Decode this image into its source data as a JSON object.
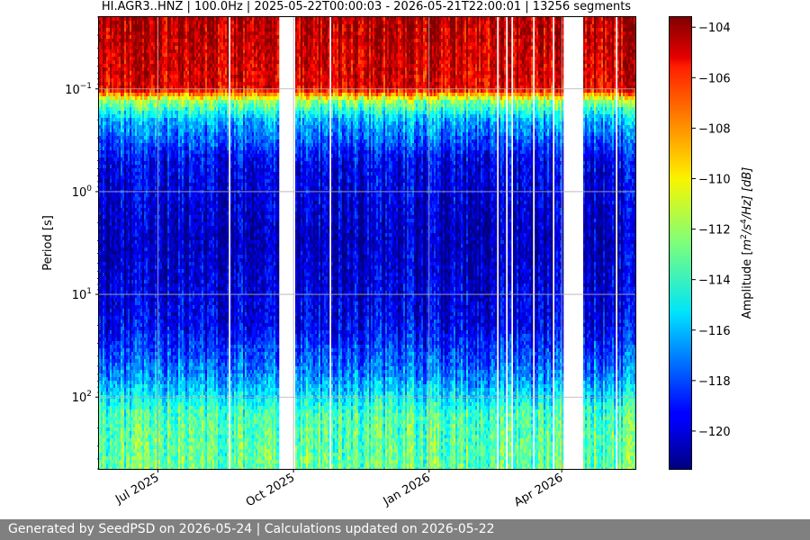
{
  "chart_data": {
    "type": "heatmap",
    "title": "HI.AGR3..HNZ | 100.0Hz | 2025-05-22T00:00:03 - 2026-05-21T22:00:01 | 13256 segments",
    "ylabel": "Period [s]",
    "y_scale": "log",
    "y_inverted": true,
    "ylim": [
      0.02,
      500
    ],
    "xlim": [
      "2025-05-22",
      "2026-05-21"
    ],
    "x_ticks": [
      {
        "date": "2025-07-01",
        "label": "Jul 2025"
      },
      {
        "date": "2025-10-01",
        "label": "Oct 2025"
      },
      {
        "date": "2026-01-01",
        "label": "Jan 2026"
      },
      {
        "date": "2026-04-01",
        "label": "Apr 2026"
      }
    ],
    "y_ticks": [
      {
        "value": 0.1,
        "base": "10",
        "exp": "−1"
      },
      {
        "value": 1,
        "base": "10",
        "exp": "0"
      },
      {
        "value": 10,
        "base": "10",
        "exp": "1"
      },
      {
        "value": 100,
        "base": "10",
        "exp": "2"
      }
    ],
    "grid": true,
    "data_gaps": [
      [
        "2025-09-21",
        "2025-10-01"
      ],
      [
        "2026-04-02",
        "2026-04-15"
      ]
    ],
    "period_profile": [
      {
        "period": 0.02,
        "amplitude": -104.5
      },
      {
        "period": 0.1,
        "amplitude": -105.5
      },
      {
        "period": 0.13,
        "amplitude": -112
      },
      {
        "period": 0.2,
        "amplitude": -116
      },
      {
        "period": 0.5,
        "amplitude": -119.5
      },
      {
        "period": 3,
        "amplitude": -120.5
      },
      {
        "period": 20,
        "amplitude": -119.5
      },
      {
        "period": 60,
        "amplitude": -117
      },
      {
        "period": 150,
        "amplitude": -113.5
      },
      {
        "period": 500,
        "amplitude": -113
      }
    ],
    "colorbar": {
      "label_prefix": "Amplitude [",
      "label_m": "m",
      "label_exp1": "2",
      "label_s": "/s",
      "label_exp2": "4",
      "label_suffix": "/Hz] [dB]",
      "range": [
        -121.5,
        -103.6
      ],
      "ticks": [
        -104,
        -106,
        -108,
        -110,
        -112,
        -114,
        -116,
        -118,
        -120
      ],
      "tick_labels": [
        "−104",
        "−106",
        "−108",
        "−110",
        "−112",
        "−114",
        "−116",
        "−118",
        "−120"
      ],
      "colormap": "jet"
    }
  },
  "footer": {
    "text": "Generated by SeedPSD on 2026-05-24 | Calculations updated on 2026-05-22"
  }
}
